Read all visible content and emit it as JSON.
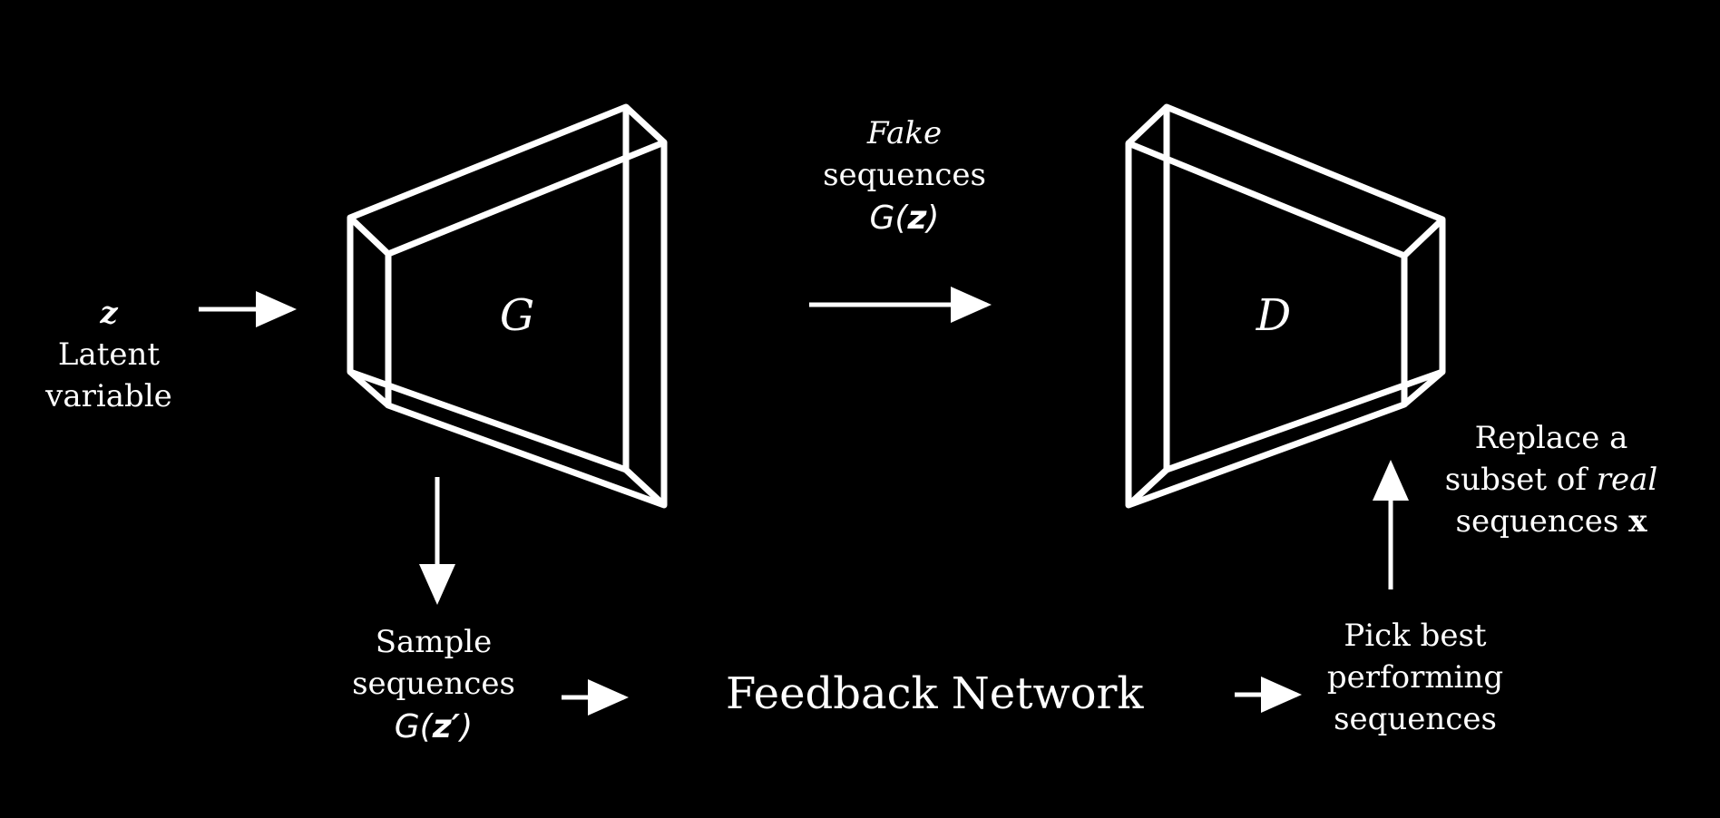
{
  "colors": {
    "background": "#000000",
    "foreground": "#ffffff"
  },
  "nodes": {
    "latent": {
      "symbol": "z",
      "line1": "Latent",
      "line2": "variable"
    },
    "generator": {
      "label": "G"
    },
    "discriminator": {
      "label": "D"
    },
    "fake": {
      "line1": "Fake",
      "line2": "sequences",
      "formula_prefix": "G(",
      "formula_arg": "z",
      "formula_suffix": ")"
    },
    "sample": {
      "line1": "Sample",
      "line2": "sequences",
      "formula_prefix": "G(",
      "formula_arg": "z′",
      "formula_suffix": ")"
    },
    "feedback": {
      "label": "Feedback Network"
    },
    "pick": {
      "line1": "Pick best",
      "line2": "performing",
      "line3": "sequences"
    },
    "replace": {
      "line1": "Replace a",
      "line2_prefix": "subset of ",
      "line2_italic": "real",
      "line3_prefix": "sequences ",
      "line3_bold": "x"
    }
  }
}
